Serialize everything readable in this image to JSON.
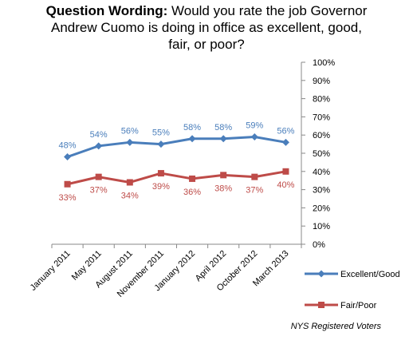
{
  "title": {
    "lead": "Question Wording:",
    "line1": " Would you rate the job Governor",
    "line2": "Andrew Cuomo is doing in office as excellent, good,",
    "line3": "fair, or poor?"
  },
  "source_note": "NYS Registered Voters",
  "chart_data": {
    "type": "line",
    "title": "",
    "xlabel": "",
    "ylabel": "",
    "ylim": [
      0,
      100
    ],
    "y_axis_position": "right",
    "y_ticks": [
      "0%",
      "10%",
      "20%",
      "30%",
      "40%",
      "50%",
      "60%",
      "70%",
      "80%",
      "90%",
      "100%"
    ],
    "categories": [
      "January 2011",
      "May 2011",
      "August 2011",
      "November 2011",
      "January 2012",
      "April 2012",
      "October 2012",
      "March 2013"
    ],
    "legend_position": "right",
    "grid": false,
    "series": [
      {
        "name": "Excellent/Good",
        "color": "#4A7EBB",
        "marker": "diamond",
        "values": [
          48,
          54,
          56,
          55,
          58,
          58,
          59,
          56
        ],
        "labels": [
          "48%",
          "54%",
          "56%",
          "55%",
          "58%",
          "58%",
          "59%",
          "56%"
        ],
        "label_position": "above"
      },
      {
        "name": "Fair/Poor",
        "color": "#BE4B48",
        "marker": "square",
        "values": [
          33,
          37,
          34,
          39,
          36,
          38,
          37,
          40
        ],
        "labels": [
          "33%",
          "37%",
          "34%",
          "39%",
          "36%",
          "38%",
          "37%",
          "40%"
        ],
        "label_position": "below"
      }
    ]
  }
}
